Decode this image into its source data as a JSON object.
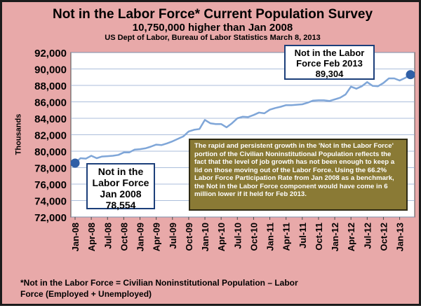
{
  "chart_data": {
    "type": "line",
    "title": "Not in the Labor Force* Current Population Survey",
    "subtitle": "10,750,000 higher than Jan 2008",
    "source": "US Dept of Labor, Bureau of Labor Statistics March 8, 2013",
    "ylabel": "Thousands",
    "xlabel": "",
    "ylim": [
      72000,
      92000
    ],
    "yticks": [
      "72,000",
      "74,000",
      "76,000",
      "78,000",
      "80,000",
      "82,000",
      "84,000",
      "86,000",
      "88,000",
      "90,000",
      "92,000"
    ],
    "xticks": [
      "Jan-08",
      "Apr-08",
      "Jul-08",
      "Oct-08",
      "Jan-09",
      "Apr-09",
      "Jul-09",
      "Oct-09",
      "Jan-10",
      "Apr-10",
      "Jul-10",
      "Oct-10",
      "Jan-11",
      "Apr-11",
      "Jul-11",
      "Oct-11",
      "Jan-12",
      "Apr-12",
      "Jul-12",
      "Oct-12",
      "Jan-13"
    ],
    "grid": true,
    "colors": {
      "background": "#e8a9a9",
      "plot_background": "#ffffff",
      "line": "#7fa6d8",
      "marker": "#2f5fa6",
      "grid": "#8fa9cf"
    },
    "series": [
      {
        "values": [
          78554,
          79150,
          79100,
          79450,
          79150,
          79350,
          79400,
          79450,
          79550,
          79850,
          79850,
          80200,
          80250,
          80350,
          80550,
          80800,
          80750,
          80950,
          81200,
          81500,
          81800,
          82400,
          82600,
          82700,
          83800,
          83400,
          83300,
          83300,
          82900,
          83400,
          84000,
          84200,
          84150,
          84400,
          84700,
          84600,
          85050,
          85250,
          85400,
          85600,
          85600,
          85650,
          85700,
          85900,
          86150,
          86200,
          86200,
          86100,
          86300,
          86500,
          86900,
          87850,
          87600,
          87900,
          88400,
          87950,
          87900,
          88300,
          88850,
          88850,
          88600,
          88900,
          89304
        ]
      }
    ]
  },
  "annotations": {
    "start_box": {
      "line1": "Not in the",
      "line2": "Labor Force",
      "line3": "Jan 2008",
      "line4": "78,554"
    },
    "end_box": {
      "line1": "Not in the Labor",
      "line2": "Force Feb 2013",
      "line3": "89,304"
    },
    "note": "The rapid and persistent growth in the 'Not in the Labor Force' portion of the Civilian Noninstitutional Population reflects the fact that the level of job growth has not been enough to keep a lid on those moving out of the Labor Force.  Using the 66.2% Labor Force Participation Rate from Jan 2008 as a benchmark, the Not in the Labor Force component would have come in 6 million lower if it held for Feb 2013."
  },
  "footnote": {
    "line1": "*Not in the Labor Force = Civilian Noninstitutional Population – Labor",
    "line2": "Force (Employed + Unemployed)"
  }
}
